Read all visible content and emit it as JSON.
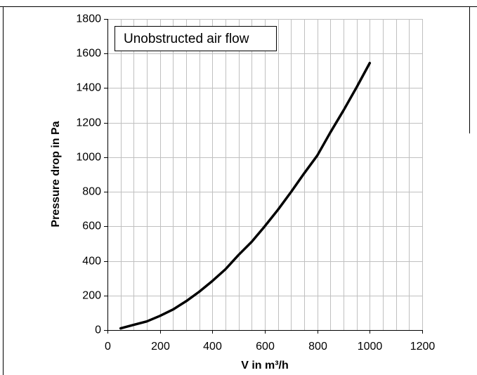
{
  "chart_data": {
    "type": "line",
    "annotation": "Unobstructed air flow",
    "xlabel": "V in m³/h",
    "ylabel": "Pressure drop in Pa",
    "x": [
      50,
      100,
      150,
      200,
      250,
      300,
      350,
      400,
      450,
      500,
      550,
      600,
      650,
      700,
      750,
      800,
      850,
      900,
      950,
      1000
    ],
    "series": [
      {
        "color": "#000000",
        "values": [
          10,
          30,
          50,
          82,
          119,
          167,
          222,
          284,
          352,
          435,
          511,
          601,
          696,
          799,
          907,
          1010,
          1144,
          1271,
          1405,
          1545
        ]
      }
    ],
    "xlim": [
      0,
      1200
    ],
    "xticks": [
      0,
      200,
      400,
      600,
      800,
      1000,
      1200
    ],
    "minor_xticks": [
      50,
      100,
      150,
      250,
      300,
      350,
      450,
      500,
      550,
      650,
      700,
      750,
      850,
      900,
      950,
      1050,
      1100,
      1150
    ],
    "ylim": [
      0,
      1800
    ],
    "yticks": [
      0,
      200,
      400,
      600,
      800,
      1000,
      1200,
      1400,
      1600,
      1800
    ],
    "grid": true
  }
}
